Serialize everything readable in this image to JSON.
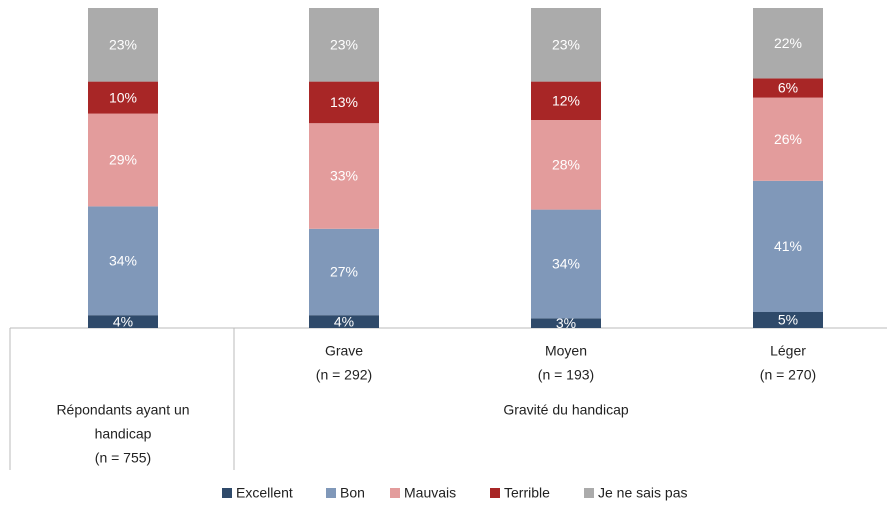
{
  "chart_data": {
    "type": "stacked_bar",
    "categories": [
      [
        "Répondants ayant un",
        "handicap",
        "(n = 755)"
      ],
      [
        "Grave",
        "(n = 292)"
      ],
      [
        "Moyen",
        "(n = 193)"
      ],
      [
        "Léger",
        "(n = 270)"
      ]
    ],
    "group_label": "Gravité du handicap",
    "ylim": [
      0,
      100
    ],
    "series": [
      {
        "name": "Excellent",
        "color": "#2f4a6a",
        "values": [
          4,
          4,
          3,
          5
        ],
        "value_labels": [
          "4%",
          "4%",
          "3%",
          "5%"
        ]
      },
      {
        "name": "Bon",
        "color": "#8098b9",
        "values": [
          34,
          27,
          34,
          41
        ],
        "value_labels": [
          "34%",
          "27%",
          "34%",
          "41%"
        ]
      },
      {
        "name": "Mauvais",
        "color": "#e39c9c",
        "values": [
          29,
          33,
          28,
          26
        ],
        "value_labels": [
          "29%",
          "33%",
          "28%",
          "26%"
        ]
      },
      {
        "name": "Terrible",
        "color": "#a82626",
        "values": [
          10,
          13,
          12,
          6
        ],
        "value_labels": [
          "10%",
          "13%",
          "12%",
          "6%"
        ]
      },
      {
        "name": "Je ne sais pas",
        "color": "#ababab",
        "values": [
          23,
          23,
          23,
          22
        ],
        "value_labels": [
          "23%",
          "23%",
          "23%",
          "22%"
        ]
      }
    ]
  }
}
